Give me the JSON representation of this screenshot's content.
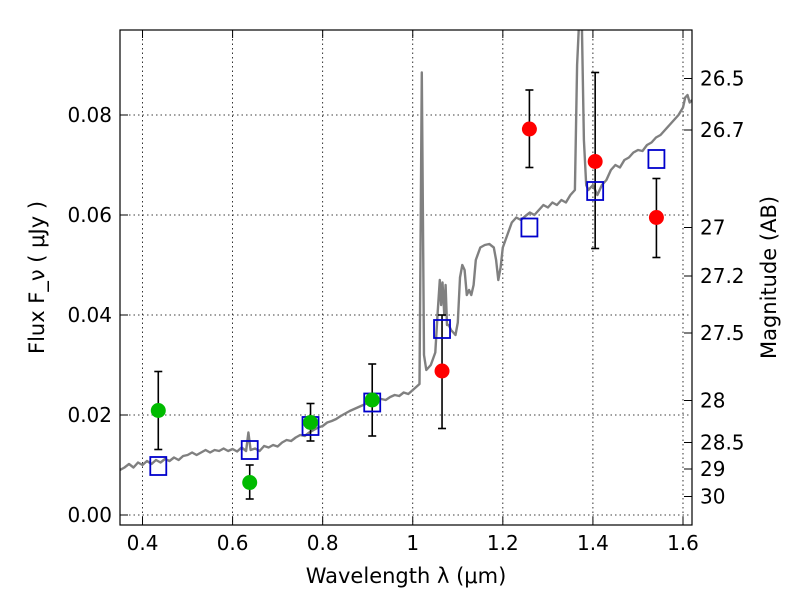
{
  "chart_data": {
    "type": "scatter",
    "title": "",
    "xlabel": "Wavelength  λ (μm)",
    "ylabel_left": "Flux  F_ν  ( μJy )",
    "ylabel_right": "Magnitude (AB)",
    "xlim": [
      0.35,
      1.62
    ],
    "ylim": [
      -0.002,
      0.097
    ],
    "grid": true,
    "x_ticks": [
      0.4,
      0.6,
      0.8,
      1.0,
      1.2,
      1.4,
      1.6
    ],
    "x_tick_labels": [
      "0.4",
      "0.6",
      "0.8",
      "1",
      "1.2",
      "1.4",
      "1.6"
    ],
    "y_ticks": [
      0.0,
      0.02,
      0.04,
      0.06,
      0.08
    ],
    "y_tick_labels": [
      "0.00",
      "0.02",
      "0.04",
      "0.06",
      "0.08"
    ],
    "right_ticks": [
      {
        "flux": 0.0873,
        "label": "26.5"
      },
      {
        "flux": 0.077,
        "label": "26.7"
      },
      {
        "flux": 0.0575,
        "label": "27"
      },
      {
        "flux": 0.0478,
        "label": "27.2"
      },
      {
        "flux": 0.0364,
        "label": "27.5"
      },
      {
        "flux": 0.0229,
        "label": "28"
      },
      {
        "flux": 0.0145,
        "label": "28.5"
      },
      {
        "flux": 0.0092,
        "label": "29"
      },
      {
        "flux": 0.0037,
        "label": "30"
      }
    ],
    "series": [
      {
        "kind": "spectrum",
        "color": "#808080",
        "points": [
          [
            0.35,
            0.009
          ],
          [
            0.36,
            0.0095
          ],
          [
            0.37,
            0.0102
          ],
          [
            0.38,
            0.0095
          ],
          [
            0.39,
            0.0105
          ],
          [
            0.4,
            0.01
          ],
          [
            0.41,
            0.0108
          ],
          [
            0.42,
            0.0102
          ],
          [
            0.43,
            0.011
          ],
          [
            0.44,
            0.0105
          ],
          [
            0.45,
            0.0112
          ],
          [
            0.46,
            0.0108
          ],
          [
            0.47,
            0.0115
          ],
          [
            0.48,
            0.011
          ],
          [
            0.49,
            0.0118
          ],
          [
            0.5,
            0.012
          ],
          [
            0.51,
            0.0125
          ],
          [
            0.52,
            0.012
          ],
          [
            0.53,
            0.0125
          ],
          [
            0.54,
            0.013
          ],
          [
            0.55,
            0.0125
          ],
          [
            0.56,
            0.013
          ],
          [
            0.57,
            0.0128
          ],
          [
            0.58,
            0.0133
          ],
          [
            0.59,
            0.0128
          ],
          [
            0.6,
            0.0132
          ],
          [
            0.61,
            0.0127
          ],
          [
            0.62,
            0.0135
          ],
          [
            0.63,
            0.0128
          ],
          [
            0.635,
            0.0165
          ],
          [
            0.64,
            0.013
          ],
          [
            0.65,
            0.0133
          ],
          [
            0.66,
            0.0128
          ],
          [
            0.67,
            0.0138
          ],
          [
            0.68,
            0.0135
          ],
          [
            0.69,
            0.014
          ],
          [
            0.7,
            0.0137
          ],
          [
            0.71,
            0.0145
          ],
          [
            0.72,
            0.015
          ],
          [
            0.73,
            0.0148
          ],
          [
            0.74,
            0.0155
          ],
          [
            0.75,
            0.016
          ],
          [
            0.76,
            0.0158
          ],
          [
            0.77,
            0.0165
          ],
          [
            0.78,
            0.017
          ],
          [
            0.79,
            0.0175
          ],
          [
            0.8,
            0.0178
          ],
          [
            0.81,
            0.0185
          ],
          [
            0.82,
            0.0188
          ],
          [
            0.83,
            0.0192
          ],
          [
            0.84,
            0.0198
          ],
          [
            0.85,
            0.0203
          ],
          [
            0.86,
            0.0208
          ],
          [
            0.87,
            0.0212
          ],
          [
            0.88,
            0.0216
          ],
          [
            0.89,
            0.022
          ],
          [
            0.9,
            0.0224
          ],
          [
            0.91,
            0.0226
          ],
          [
            0.92,
            0.0228
          ],
          [
            0.93,
            0.0232
          ],
          [
            0.94,
            0.023
          ],
          [
            0.95,
            0.0236
          ],
          [
            0.96,
            0.024
          ],
          [
            0.97,
            0.0238
          ],
          [
            0.98,
            0.0245
          ],
          [
            0.99,
            0.0242
          ],
          [
            1.0,
            0.025
          ],
          [
            1.01,
            0.0258
          ],
          [
            1.015,
            0.0262
          ],
          [
            1.02,
            0.0885
          ],
          [
            1.025,
            0.032
          ],
          [
            1.03,
            0.029
          ],
          [
            1.04,
            0.03
          ],
          [
            1.05,
            0.0325
          ],
          [
            1.055,
            0.04
          ],
          [
            1.06,
            0.047
          ],
          [
            1.063,
            0.042
          ],
          [
            1.066,
            0.0465
          ],
          [
            1.07,
            0.04
          ],
          [
            1.073,
            0.046
          ],
          [
            1.076,
            0.038
          ],
          [
            1.08,
            0.038
          ],
          [
            1.085,
            0.037
          ],
          [
            1.09,
            0.0365
          ],
          [
            1.095,
            0.036
          ],
          [
            1.1,
            0.0385
          ],
          [
            1.105,
            0.0475
          ],
          [
            1.11,
            0.05
          ],
          [
            1.115,
            0.049
          ],
          [
            1.12,
            0.044
          ],
          [
            1.125,
            0.045
          ],
          [
            1.13,
            0.044
          ],
          [
            1.135,
            0.046
          ],
          [
            1.14,
            0.051
          ],
          [
            1.15,
            0.0535
          ],
          [
            1.16,
            0.054
          ],
          [
            1.17,
            0.0542
          ],
          [
            1.18,
            0.0535
          ],
          [
            1.185,
            0.051
          ],
          [
            1.19,
            0.047
          ],
          [
            1.195,
            0.0495
          ],
          [
            1.2,
            0.0535
          ],
          [
            1.21,
            0.056
          ],
          [
            1.22,
            0.0585
          ],
          [
            1.23,
            0.0595
          ],
          [
            1.24,
            0.059
          ],
          [
            1.25,
            0.0598
          ],
          [
            1.26,
            0.0605
          ],
          [
            1.27,
            0.06
          ],
          [
            1.28,
            0.061
          ],
          [
            1.29,
            0.062
          ],
          [
            1.3,
            0.0615
          ],
          [
            1.31,
            0.0625
          ],
          [
            1.32,
            0.062
          ],
          [
            1.33,
            0.063
          ],
          [
            1.34,
            0.0625
          ],
          [
            1.35,
            0.064
          ],
          [
            1.36,
            0.065
          ],
          [
            1.365,
            0.09
          ],
          [
            1.37,
            0.1
          ],
          [
            1.375,
            0.1
          ],
          [
            1.38,
            0.075
          ],
          [
            1.385,
            0.066
          ],
          [
            1.39,
            0.065
          ],
          [
            1.4,
            0.066
          ],
          [
            1.41,
            0.064
          ],
          [
            1.42,
            0.066
          ],
          [
            1.43,
            0.067
          ],
          [
            1.44,
            0.069
          ],
          [
            1.45,
            0.07
          ],
          [
            1.46,
            0.0695
          ],
          [
            1.47,
            0.071
          ],
          [
            1.48,
            0.0715
          ],
          [
            1.49,
            0.0725
          ],
          [
            1.5,
            0.073
          ],
          [
            1.51,
            0.0728
          ],
          [
            1.52,
            0.074
          ],
          [
            1.53,
            0.0745
          ],
          [
            1.54,
            0.0755
          ],
          [
            1.55,
            0.076
          ],
          [
            1.56,
            0.077
          ],
          [
            1.57,
            0.078
          ],
          [
            1.58,
            0.079
          ],
          [
            1.59,
            0.08
          ],
          [
            1.6,
            0.0815
          ],
          [
            1.605,
            0.0835
          ],
          [
            1.61,
            0.084
          ],
          [
            1.615,
            0.0825
          ],
          [
            1.62,
            0.083
          ]
        ]
      },
      {
        "kind": "model_points",
        "marker": "open-square",
        "color": "#0000cc",
        "points": [
          [
            0.435,
            0.0098
          ],
          [
            0.638,
            0.013
          ],
          [
            0.773,
            0.0178
          ],
          [
            0.91,
            0.0225
          ],
          [
            1.065,
            0.0372
          ],
          [
            1.259,
            0.0575
          ],
          [
            1.405,
            0.0648
          ],
          [
            1.541,
            0.0712
          ]
        ]
      },
      {
        "kind": "observed_green",
        "marker": "filled-circle",
        "color": "#00bb00",
        "points": [
          {
            "x": 0.435,
            "y": 0.0209,
            "lo": 0.0131,
            "hi": 0.0287
          },
          {
            "x": 0.638,
            "y": 0.0065,
            "lo": 0.0032,
            "hi": 0.01
          },
          {
            "x": 0.773,
            "y": 0.0185,
            "lo": 0.0148,
            "hi": 0.0223
          },
          {
            "x": 0.91,
            "y": 0.023,
            "lo": 0.0158,
            "hi": 0.0302
          }
        ]
      },
      {
        "kind": "observed_red",
        "marker": "filled-circle",
        "color": "#ff0000",
        "points": [
          {
            "x": 1.065,
            "y": 0.0288,
            "lo": 0.0173,
            "hi": 0.04
          },
          {
            "x": 1.259,
            "y": 0.0772,
            "lo": 0.0695,
            "hi": 0.085
          },
          {
            "x": 1.405,
            "y": 0.0707,
            "lo": 0.0533,
            "hi": 0.0885
          },
          {
            "x": 1.541,
            "y": 0.0595,
            "lo": 0.0515,
            "hi": 0.0673
          }
        ]
      }
    ]
  }
}
